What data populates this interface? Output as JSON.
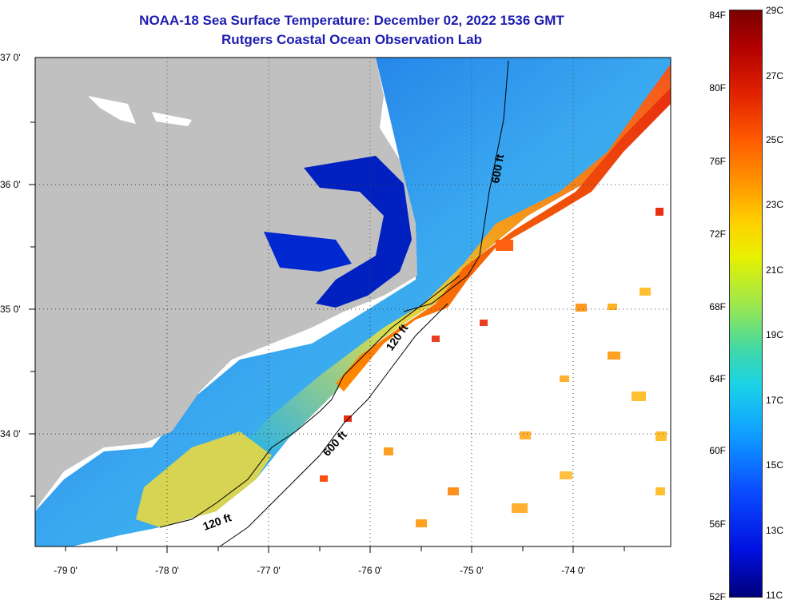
{
  "title": "NOAA-18 Sea Surface Temperature:  December 02, 2022 1536 GMT",
  "subtitle": "Rutgers Coastal Ocean Observation Lab",
  "lat_labels": [
    "37 0'",
    "36 0'",
    "35 0'",
    "34 0'"
  ],
  "lon_labels": [
    "-79 0'",
    "-78 0'",
    "-77 0'",
    "-76 0'",
    "-75 0'",
    "-74 0'"
  ],
  "isobath_labels": [
    "600 ft",
    "120 ft",
    "600 ft",
    "120 ft"
  ],
  "colorbar": {
    "fahrenheit": [
      "84F",
      "80F",
      "76F",
      "72F",
      "68F",
      "64F",
      "60F",
      "56F",
      "52F"
    ],
    "celsius": [
      "29C",
      "27C",
      "25C",
      "23C",
      "21C",
      "19C",
      "17C",
      "15C",
      "13C",
      "11C"
    ]
  },
  "colors": {
    "title": "#1c1cb0",
    "land": "#c0c0c0",
    "no_data": "#ffffff"
  }
}
